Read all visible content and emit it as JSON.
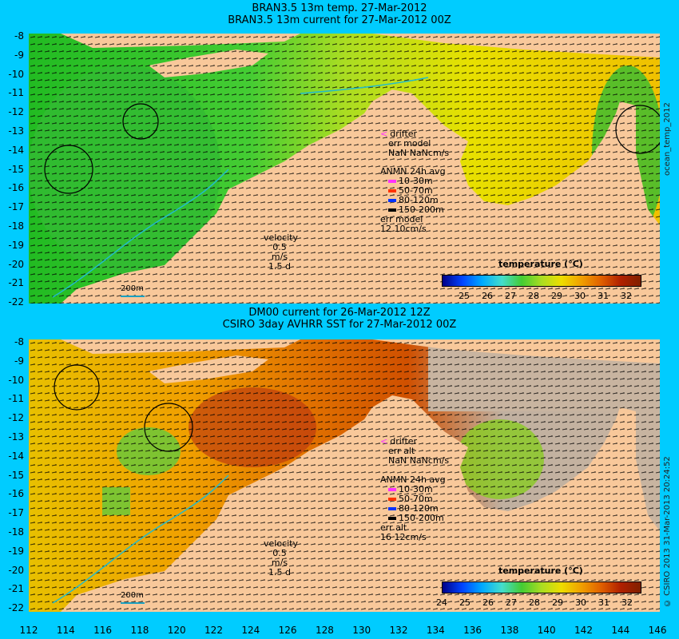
{
  "top_panel": {
    "title_line1": "BRAN3.5 13m temp. 27-Mar-2012",
    "title_line2": "BRAN3.5 13m current for 27-Mar-2012 00Z",
    "drifter_label": "drifter",
    "err_label": "err model",
    "nan_label": "NaN NaNcm/s",
    "anmn_title": "ANMN 24h avg",
    "depth_bins": [
      "10-30m",
      "50-70m",
      "80-120m",
      "150-200m"
    ],
    "err_label2": "err model",
    "err_value": "12 10cm/s",
    "velocity_label": "velocity",
    "velocity_value": "0.5 m/s",
    "velocity_time": "1.5 d",
    "scale_label": "200m",
    "colorbar_title": "temperature (°C)",
    "colorbar_ticks": [
      "25",
      "26",
      "27",
      "28",
      "29",
      "30",
      "31",
      "32"
    ],
    "side_label": "ocean_temp_2012"
  },
  "bottom_panel": {
    "title_line1": "DM00 current for 26-Mar-2012 12Z",
    "title_line2": "CSIRO 3day AVHRR SST for 27-Mar-2012 00Z",
    "drifter_label": "drifter",
    "err_label": "err alt",
    "nan_label": "NaN NaNcm/s",
    "anmn_title": "ANMN 24h avg",
    "depth_bins": [
      "10-30m",
      "50-70m",
      "80-120m",
      "150-200m"
    ],
    "err_label2": "err alt",
    "err_value": "16 12cm/s",
    "velocity_label": "velocity",
    "velocity_value": "0.5 m/s",
    "velocity_time": "1.5 d",
    "scale_label": "200m",
    "colorbar_title": "temperature (°C)",
    "colorbar_ticks": [
      "24",
      "25",
      "26",
      "27",
      "28",
      "29",
      "30",
      "31",
      "32"
    ],
    "side_label": "© CSIRO 2013  31-Mar-2013 20:24:52"
  },
  "latitude_ticks": [
    "-8",
    "-9",
    "-10",
    "-11",
    "-12",
    "-13",
    "-14",
    "-15",
    "-16",
    "-17",
    "-18",
    "-19",
    "-20",
    "-21",
    "-22"
  ],
  "longitude_ticks": [
    "112",
    "114",
    "116",
    "118",
    "120",
    "122",
    "124",
    "126",
    "128",
    "130",
    "132",
    "134",
    "136",
    "138",
    "140",
    "142",
    "144",
    "146"
  ],
  "depth_colors": [
    "#ff33ff",
    "#ff3300",
    "#0033ff",
    "#000000"
  ],
  "colors": {
    "background": "#00ccff",
    "land": "#f8c89a",
    "cloud_mask": "#c8b4a0"
  }
}
